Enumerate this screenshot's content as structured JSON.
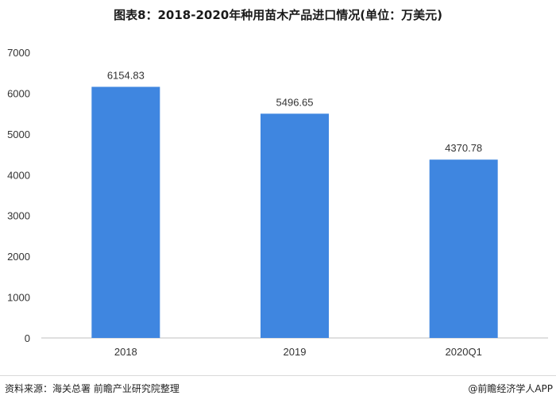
{
  "title": "图表8：2018-2020年种用苗木产品进口情况(单位：万美元)",
  "source_text": "资料来源：海关总署 前瞻产业研究院整理",
  "brand_text": "@前瞻经济学人APP",
  "colors": {
    "bar": "#3F86E0",
    "axis": "#BFBFBF",
    "text": "#333333"
  },
  "chart_data": {
    "type": "bar",
    "title": "图表8：2018-2020年种用苗木产品进口情况(单位：万美元)",
    "categories": [
      "2018",
      "2019",
      "2020Q1"
    ],
    "values": [
      6154.83,
      5496.65,
      4370.78
    ],
    "value_labels": [
      "6154.83",
      "5496.65",
      "4370.78"
    ],
    "xlabel": "",
    "ylabel": "",
    "ylim": [
      0,
      7000
    ],
    "yticks": [
      0,
      1000,
      2000,
      3000,
      4000,
      5000,
      6000,
      7000
    ],
    "grid": false,
    "legend": "none"
  }
}
